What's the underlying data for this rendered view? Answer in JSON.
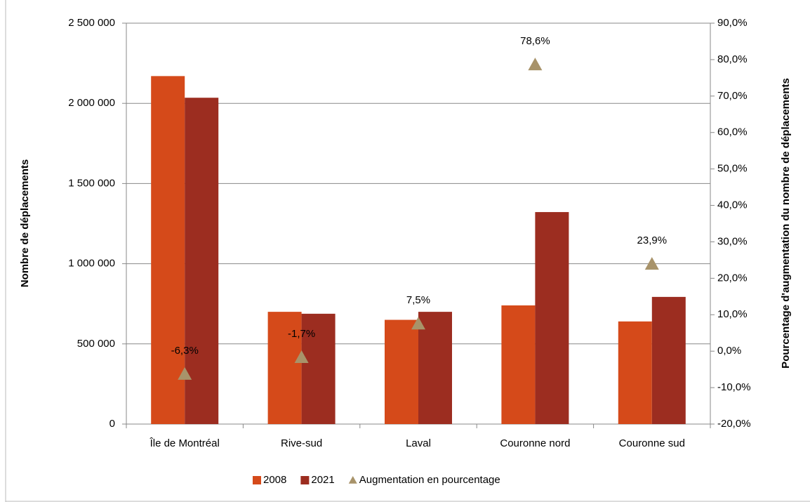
{
  "chart_data": {
    "type": "bar",
    "y_label": "Nombre de déplacements",
    "y2_label": "Pourcentage d'augmentation du nombre de déplacements",
    "categories": [
      "Île de Montréal",
      "Rive-sud",
      "Laval",
      "Couronne nord",
      "Couronne sud"
    ],
    "series": [
      {
        "name": "2008",
        "color": "#d54a1a",
        "values": [
          2170000,
          700000,
          650000,
          740000,
          640000
        ]
      },
      {
        "name": "2021",
        "color": "#9c2d20",
        "values": [
          2035000,
          688000,
          700000,
          1322000,
          793000
        ]
      },
      {
        "name": "Augmentation en pourcentage",
        "type": "scatter",
        "axis": "y2",
        "color": "#a8936a",
        "values": [
          -6.3,
          -1.7,
          7.5,
          78.6,
          23.9
        ],
        "value_labels": [
          "-6,3%",
          "-1,7%",
          "7,5%",
          "78,6%",
          "23,9%"
        ]
      }
    ],
    "ylim": [
      0,
      2500000
    ],
    "yticks": [
      0,
      {
        "value": 500000,
        "label": "500 000"
      },
      {
        "value": 1000000,
        "label": "1 000 000"
      },
      {
        "value": 1500000,
        "label": "1 500 000"
      },
      {
        "value": 2000000,
        "label": "2 000 000"
      },
      {
        "value": 2500000,
        "label": "2 500 000"
      }
    ],
    "y2lim": [
      -20,
      90
    ],
    "y2ticks": [
      {
        "value": -20,
        "label": "-20,0%"
      },
      {
        "value": -10,
        "label": "-10,0%"
      },
      {
        "value": 0,
        "label": "0,0%"
      },
      {
        "value": 10,
        "label": "10,0%"
      },
      {
        "value": 20,
        "label": "20,0%"
      },
      {
        "value": 30,
        "label": "30,0%"
      },
      {
        "value": 40,
        "label": "40,0%"
      },
      {
        "value": 50,
        "label": "50,0%"
      },
      {
        "value": 60,
        "label": "60,0%"
      },
      {
        "value": 70,
        "label": "70,0%"
      },
      {
        "value": 80,
        "label": "80,0%"
      },
      {
        "value": 90,
        "label": "90,0%"
      }
    ],
    "grid": true,
    "legend": "bottom"
  }
}
